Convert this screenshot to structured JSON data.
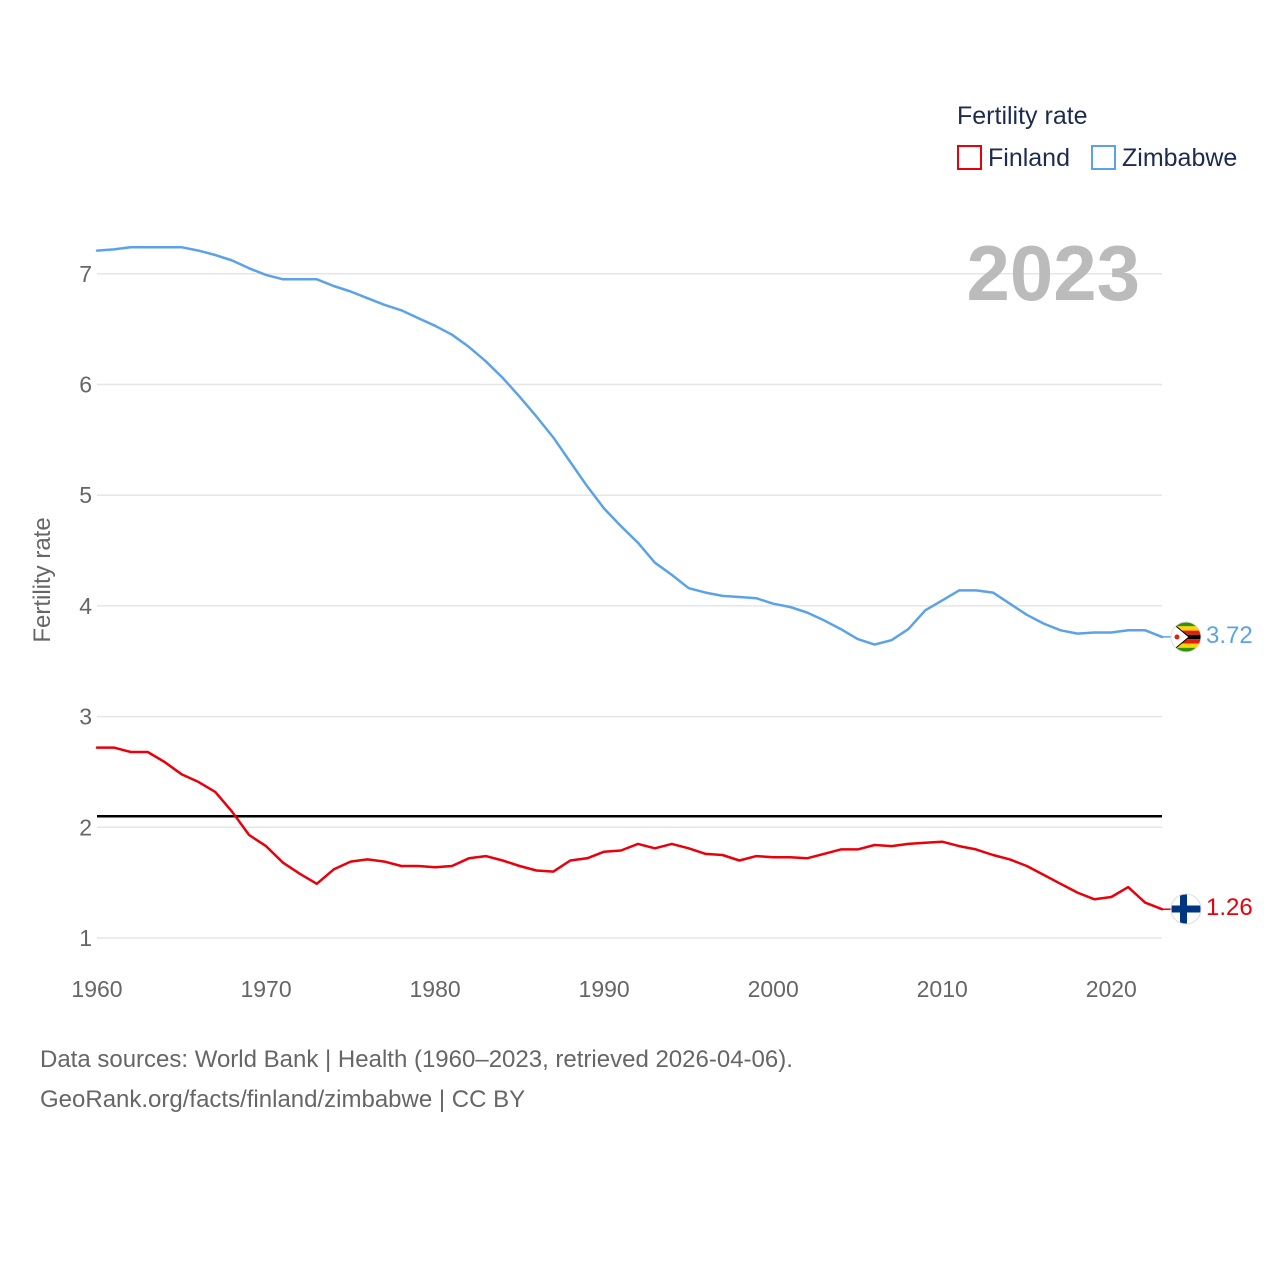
{
  "chart_data": {
    "type": "line",
    "title": "",
    "ylabel": "Fertility rate",
    "xlabel": "",
    "year_label": "2023",
    "legend": {
      "title": "Fertility rate",
      "position": "top-right"
    },
    "xlim": [
      1960,
      2023
    ],
    "ylim": [
      0.7,
      7.6
    ],
    "xticks": [
      1960,
      1970,
      1980,
      1990,
      2000,
      2010,
      2020
    ],
    "yticks": [
      1,
      2,
      3,
      4,
      5,
      6,
      7
    ],
    "reference_line": {
      "y": 2.1
    },
    "x": [
      1960,
      1961,
      1962,
      1963,
      1964,
      1965,
      1966,
      1967,
      1968,
      1969,
      1970,
      1971,
      1972,
      1973,
      1974,
      1975,
      1976,
      1977,
      1978,
      1979,
      1980,
      1981,
      1982,
      1983,
      1984,
      1985,
      1986,
      1987,
      1988,
      1989,
      1990,
      1991,
      1992,
      1993,
      1994,
      1995,
      1996,
      1997,
      1998,
      1999,
      2000,
      2001,
      2002,
      2003,
      2004,
      2005,
      2006,
      2007,
      2008,
      2009,
      2010,
      2011,
      2012,
      2013,
      2014,
      2015,
      2016,
      2017,
      2018,
      2019,
      2020,
      2021,
      2022,
      2023
    ],
    "series": [
      {
        "name": "Finland",
        "color": "#e8000b",
        "end_label": "1.26",
        "flag": "finland-flag",
        "values": [
          2.72,
          2.72,
          2.68,
          2.68,
          2.59,
          2.48,
          2.41,
          2.32,
          2.14,
          1.93,
          1.83,
          1.68,
          1.58,
          1.49,
          1.62,
          1.69,
          1.71,
          1.69,
          1.65,
          1.65,
          1.64,
          1.65,
          1.72,
          1.74,
          1.7,
          1.65,
          1.61,
          1.6,
          1.7,
          1.72,
          1.78,
          1.79,
          1.85,
          1.81,
          1.85,
          1.81,
          1.76,
          1.75,
          1.7,
          1.74,
          1.73,
          1.73,
          1.72,
          1.76,
          1.8,
          1.8,
          1.84,
          1.83,
          1.85,
          1.86,
          1.87,
          1.83,
          1.8,
          1.75,
          1.71,
          1.65,
          1.57,
          1.49,
          1.41,
          1.35,
          1.37,
          1.46,
          1.32,
          1.26
        ]
      },
      {
        "name": "Zimbabwe",
        "color": "#5ba3e6",
        "end_label": "3.72",
        "flag": "zimbabwe-flag",
        "values": [
          7.21,
          7.22,
          7.24,
          7.24,
          7.24,
          7.24,
          7.21,
          7.17,
          7.12,
          7.05,
          6.99,
          6.95,
          6.95,
          6.95,
          6.89,
          6.84,
          6.78,
          6.72,
          6.67,
          6.6,
          6.53,
          6.45,
          6.34,
          6.21,
          6.06,
          5.89,
          5.71,
          5.52,
          5.3,
          5.08,
          4.88,
          4.72,
          4.57,
          4.39,
          4.28,
          4.16,
          4.12,
          4.09,
          4.08,
          4.07,
          4.02,
          3.99,
          3.94,
          3.87,
          3.79,
          3.7,
          3.65,
          3.69,
          3.79,
          3.96,
          4.05,
          4.14,
          4.14,
          4.12,
          4.02,
          3.92,
          3.84,
          3.78,
          3.75,
          3.76,
          3.76,
          3.78,
          3.78,
          3.72
        ]
      }
    ]
  },
  "footer": {
    "line1": "Data sources: World Bank | Health (1960–2023, retrieved 2026-04-06).",
    "line2": "GeoRank.org/facts/finland/zimbabwe | CC BY"
  }
}
